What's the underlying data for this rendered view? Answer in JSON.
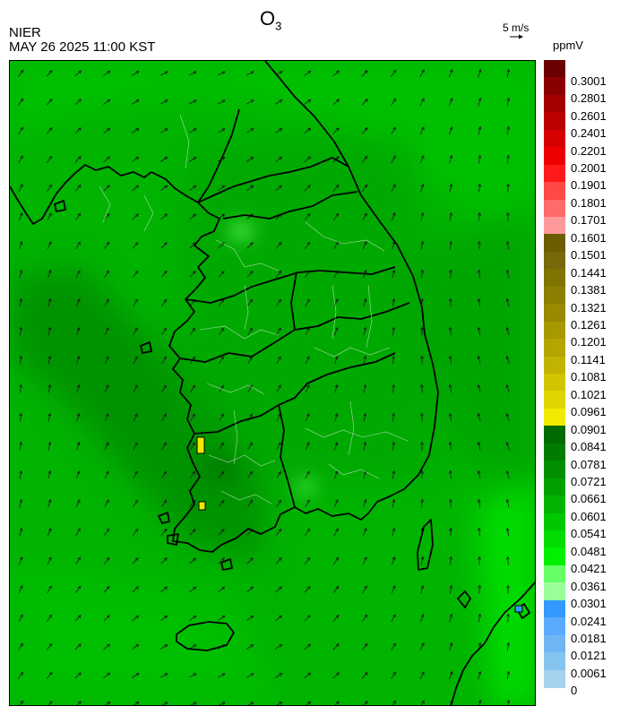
{
  "header": {
    "agency": "NIER",
    "datetime": "MAY 26 2025 11:00 KST",
    "title_main": "O",
    "title_sub": "3",
    "wind_scale": "5 m/s",
    "unit": "ppmV"
  },
  "legend": {
    "labels": [
      "0.3001",
      "0.2801",
      "0.2601",
      "0.2401",
      "0.2201",
      "0.2001",
      "0.1901",
      "0.1801",
      "0.1701",
      "0.1601",
      "0.1501",
      "0.1441",
      "0.1381",
      "0.1321",
      "0.1261",
      "0.1201",
      "0.1141",
      "0.1081",
      "0.1021",
      "0.0961",
      "0.0901",
      "0.0841",
      "0.0781",
      "0.0721",
      "0.0661",
      "0.0601",
      "0.0541",
      "0.0481",
      "0.0421",
      "0.0361",
      "0.0301",
      "0.0241",
      "0.0181",
      "0.0121",
      "0.0061",
      "0"
    ],
    "colors": [
      "#6a0000",
      "#8a0000",
      "#a50000",
      "#bb0000",
      "#d60000",
      "#ee0000",
      "#ff1a1a",
      "#ff4848",
      "#ff6a6a",
      "#ff9a9a",
      "#6b5d00",
      "#76690a",
      "#807400",
      "#8c7e00",
      "#998a00",
      "#a89800",
      "#b5a500",
      "#c2b300",
      "#d2c400",
      "#e2d400",
      "#f2ea00",
      "#006b00",
      "#007d00",
      "#008f00",
      "#00a000",
      "#00b400",
      "#00c800",
      "#00dc00",
      "#00f000",
      "#66ff66",
      "#99ff99",
      "#3399ff",
      "#5aabff",
      "#70b6f2",
      "#86c4f0",
      "#a5d2ee"
    ]
  }
}
